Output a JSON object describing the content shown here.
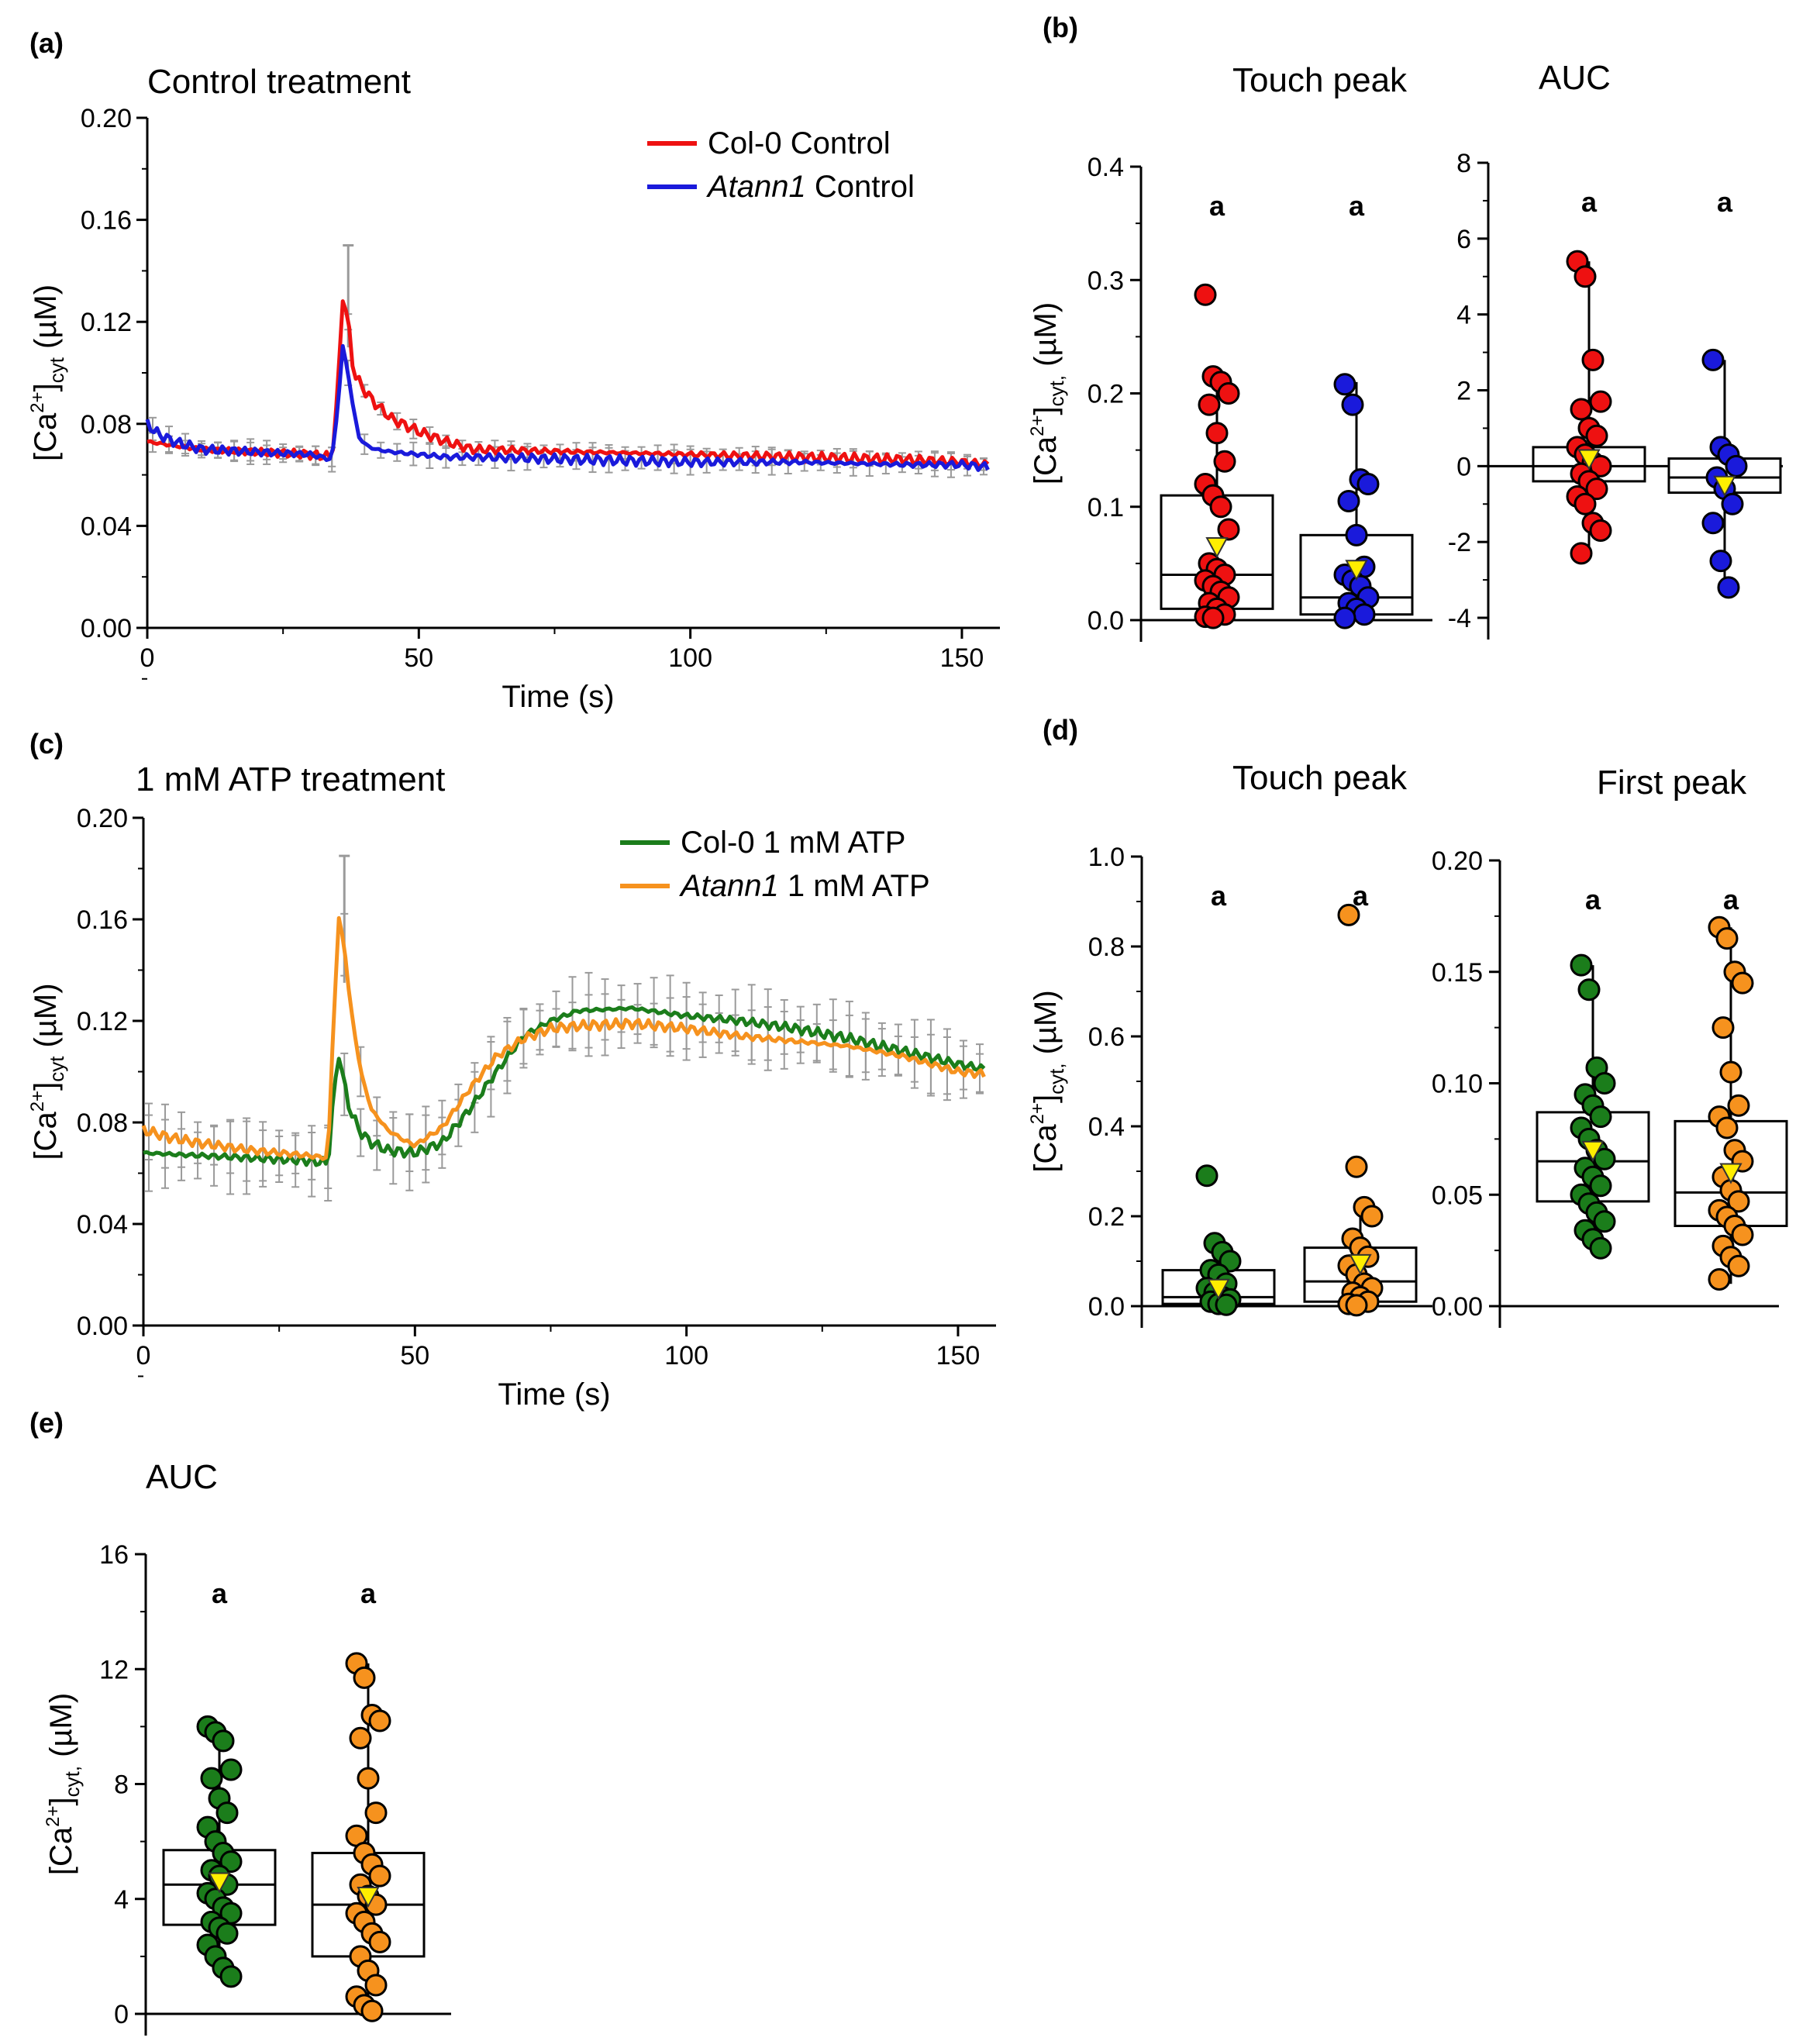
{
  "colors": {
    "red": "#ee1111",
    "blue": "#1a1adb",
    "green": "#1b7d1b",
    "orange": "#f6921e",
    "err": "#9a9a9a",
    "mean": "#ffee00"
  },
  "chart_data": [
    {
      "id": "a",
      "panel_label": "(a)",
      "type": "line",
      "title": "Control treatment",
      "xlabel": "Time (s)",
      "ylabel": "[Ca2+]cyt (µM)",
      "ylabel_parts": [
        "[Ca",
        "2+",
        "]",
        "cyt",
        " (µM)"
      ],
      "xlim": [
        0,
        157
      ],
      "ylim": [
        0,
        0.2
      ],
      "xticks": [
        "0",
        "50",
        "100",
        "150"
      ],
      "yticks": [
        "0.00",
        "0.04",
        "0.08",
        "0.12",
        "0.16",
        "0.20"
      ],
      "legend": {
        "position": "top-right"
      },
      "series": [
        {
          "name": "Col-0 Control",
          "name_parts": [
            "Col-0 Control"
          ],
          "italic_parts": [],
          "color_key": "red",
          "x": [
            0,
            10,
            20,
            30,
            34,
            35,
            36,
            37,
            38,
            40,
            42,
            45,
            50,
            55,
            60,
            80,
            100,
            120,
            140,
            150,
            155
          ],
          "y": [
            0.073,
            0.07,
            0.069,
            0.068,
            0.067,
            0.09,
            0.13,
            0.12,
            0.1,
            0.093,
            0.088,
            0.082,
            0.077,
            0.073,
            0.07,
            0.069,
            0.068,
            0.067,
            0.066,
            0.065,
            0.064
          ],
          "err": 0.003
        },
        {
          "name": "Atann1 Control",
          "name_parts": [
            "Atann1",
            " Control"
          ],
          "italic_parts": [
            0
          ],
          "color_key": "blue",
          "x": [
            0,
            2,
            5,
            10,
            20,
            30,
            34,
            35,
            36,
            37,
            38,
            39,
            40,
            42,
            45,
            50,
            55,
            60,
            80,
            100,
            120,
            140,
            150,
            155
          ],
          "y": [
            0.08,
            0.076,
            0.073,
            0.07,
            0.069,
            0.068,
            0.066,
            0.085,
            0.11,
            0.1,
            0.085,
            0.075,
            0.072,
            0.07,
            0.069,
            0.068,
            0.067,
            0.067,
            0.066,
            0.065,
            0.065,
            0.064,
            0.064,
            0.063
          ],
          "err": 0.004
        }
      ],
      "peak_error": {
        "x": 37,
        "y": 0.13,
        "err": 0.02
      }
    },
    {
      "id": "b1",
      "panel_label": "(b)",
      "type": "box",
      "title": "Touch peak",
      "ylabel": "[Ca2+]cyt (µM)",
      "ylabel_parts": [
        "[Ca",
        "2+",
        "]",
        "cyt,",
        " (µM)"
      ],
      "ylim": [
        0,
        0.4
      ],
      "yticks": [
        "0.0",
        "0.1",
        "0.2",
        "0.3",
        "0.4"
      ],
      "ytick_values": [
        0,
        0.1,
        0.2,
        0.3,
        0.4
      ],
      "zero_line": false,
      "groups": [
        {
          "color_key": "red",
          "sig": "a",
          "q1": 0.01,
          "median": 0.04,
          "q3": 0.11,
          "whisker_low": 0.0,
          "whisker_high": 0.215,
          "mean": 0.065,
          "points": [
            0.287,
            0.215,
            0.21,
            0.2,
            0.19,
            0.165,
            0.14,
            0.12,
            0.11,
            0.1,
            0.08,
            0.05,
            0.045,
            0.04,
            0.035,
            0.03,
            0.025,
            0.02,
            0.015,
            0.01,
            0.005,
            0.003,
            0.002
          ]
        },
        {
          "color_key": "blue",
          "sig": "a",
          "q1": 0.005,
          "median": 0.02,
          "q3": 0.075,
          "whisker_low": 0.0,
          "whisker_high": 0.21,
          "mean": 0.045,
          "points": [
            0.208,
            0.19,
            0.124,
            0.12,
            0.105,
            0.075,
            0.047,
            0.04,
            0.035,
            0.03,
            0.02,
            0.015,
            0.01,
            0.005,
            0.002
          ]
        }
      ]
    },
    {
      "id": "b2",
      "type": "box",
      "title": "AUC",
      "ylim": [
        -4,
        8
      ],
      "yticks": [
        "-4",
        "-2",
        "0",
        "2",
        "4",
        "6",
        "8"
      ],
      "ytick_values": [
        -4,
        -2,
        0,
        2,
        4,
        6,
        8
      ],
      "zero_line": true,
      "groups": [
        {
          "color_key": "red",
          "sig": "a",
          "q1": -0.4,
          "median": 0.0,
          "q3": 0.5,
          "whisker_low": -2.3,
          "whisker_high": 5.4,
          "mean": 0.2,
          "points": [
            5.4,
            5.0,
            2.8,
            1.7,
            1.5,
            1.0,
            0.8,
            0.5,
            0.3,
            0.1,
            0.0,
            -0.2,
            -0.4,
            -0.6,
            -0.8,
            -1.0,
            -1.5,
            -1.7,
            -2.3
          ]
        },
        {
          "color_key": "blue",
          "sig": "a",
          "q1": -0.7,
          "median": -0.3,
          "q3": 0.2,
          "whisker_low": -3.2,
          "whisker_high": 2.8,
          "mean": -0.5,
          "points": [
            2.8,
            0.5,
            0.3,
            0.0,
            -0.3,
            -0.6,
            -1.0,
            -1.5,
            -2.5,
            -3.2
          ]
        }
      ]
    },
    {
      "id": "c",
      "panel_label": "(c)",
      "type": "line",
      "title": "1 mM ATP treatment",
      "xlabel": "Time (s)",
      "ylabel": "[Ca2+]cyt (µM)",
      "ylabel_parts": [
        "[Ca",
        "2+",
        "]",
        "cyt",
        " (µM)"
      ],
      "xlim": [
        0,
        157
      ],
      "ylim": [
        0,
        0.2
      ],
      "xticks": [
        "0",
        "50",
        "100",
        "150"
      ],
      "yticks": [
        "0.00",
        "0.04",
        "0.08",
        "0.12",
        "0.16",
        "0.20"
      ],
      "legend": {
        "position": "top-right"
      },
      "series": [
        {
          "name": "Col-0 1 mM ATP",
          "name_parts": [
            "Col-0 1 mM ATP"
          ],
          "italic_parts": [],
          "color_key": "green",
          "x": [
            0,
            10,
            20,
            30,
            34,
            35,
            36,
            37,
            38,
            40,
            42,
            45,
            50,
            55,
            60,
            65,
            70,
            75,
            80,
            90,
            100,
            110,
            120,
            130,
            140,
            150,
            155
          ],
          "y": [
            0.068,
            0.067,
            0.066,
            0.065,
            0.064,
            0.09,
            0.107,
            0.095,
            0.085,
            0.076,
            0.072,
            0.069,
            0.068,
            0.072,
            0.085,
            0.1,
            0.114,
            0.12,
            0.124,
            0.125,
            0.122,
            0.12,
            0.117,
            0.113,
            0.108,
            0.103,
            0.101
          ],
          "err": 0.012
        },
        {
          "name": "Atann1 1 mM ATP",
          "name_parts": [
            "Atann1",
            " 1 mM ATP"
          ],
          "italic_parts": [
            0
          ],
          "color_key": "orange",
          "x": [
            0,
            5,
            10,
            20,
            30,
            34,
            35,
            36,
            37,
            38,
            40,
            42,
            45,
            48,
            50,
            55,
            60,
            65,
            70,
            75,
            80,
            90,
            100,
            110,
            120,
            130,
            140,
            150,
            155
          ],
          "y": [
            0.077,
            0.074,
            0.072,
            0.069,
            0.067,
            0.066,
            0.12,
            0.16,
            0.15,
            0.128,
            0.1,
            0.085,
            0.077,
            0.073,
            0.071,
            0.078,
            0.093,
            0.106,
            0.113,
            0.117,
            0.118,
            0.119,
            0.117,
            0.114,
            0.112,
            0.11,
            0.106,
            0.1,
            0.099
          ],
          "err": 0.01
        }
      ],
      "peak_error": {
        "x": 37,
        "y": 0.16,
        "err": 0.025
      }
    },
    {
      "id": "d1",
      "panel_label": "(d)",
      "type": "box",
      "title": "Touch peak",
      "ylabel": "[Ca2+]cyt (µM)",
      "ylabel_parts": [
        "[Ca",
        "2+",
        "]",
        "cyt,",
        " (µM)"
      ],
      "ylim": [
        0,
        1.0
      ],
      "yticks": [
        "0.0",
        "0.2",
        "0.4",
        "0.6",
        "0.8",
        "1.0"
      ],
      "ytick_values": [
        0,
        0.2,
        0.4,
        0.6,
        0.8,
        1.0
      ],
      "zero_line": false,
      "groups": [
        {
          "color_key": "green",
          "sig": "a",
          "q1": 0.005,
          "median": 0.02,
          "q3": 0.08,
          "whisker_low": 0.0,
          "whisker_high": 0.14,
          "mean": 0.04,
          "points": [
            0.29,
            0.14,
            0.12,
            0.1,
            0.08,
            0.07,
            0.05,
            0.04,
            0.03,
            0.02,
            0.015,
            0.01,
            0.005,
            0.003
          ]
        },
        {
          "color_key": "orange",
          "sig": "a",
          "q1": 0.01,
          "median": 0.055,
          "q3": 0.13,
          "whisker_low": 0.0,
          "whisker_high": 0.22,
          "mean": 0.095,
          "points": [
            0.87,
            0.31,
            0.22,
            0.2,
            0.15,
            0.13,
            0.11,
            0.09,
            0.07,
            0.05,
            0.04,
            0.03,
            0.02,
            0.01,
            0.005,
            0.002
          ]
        }
      ]
    },
    {
      "id": "d2",
      "type": "box",
      "title": "First peak",
      "ylim": [
        0,
        0.2
      ],
      "yticks": [
        "0.00",
        "0.05",
        "0.10",
        "0.15",
        "0.20"
      ],
      "ytick_values": [
        0,
        0.05,
        0.1,
        0.15,
        0.2
      ],
      "zero_line": false,
      "groups": [
        {
          "color_key": "green",
          "sig": "a",
          "q1": 0.047,
          "median": 0.065,
          "q3": 0.087,
          "whisker_low": 0.025,
          "whisker_high": 0.153,
          "mean": 0.07,
          "points": [
            0.153,
            0.142,
            0.107,
            0.1,
            0.095,
            0.09,
            0.085,
            0.08,
            0.075,
            0.07,
            0.066,
            0.062,
            0.058,
            0.054,
            0.05,
            0.046,
            0.042,
            0.038,
            0.034,
            0.03,
            0.026
          ]
        },
        {
          "color_key": "orange",
          "sig": "a",
          "q1": 0.036,
          "median": 0.051,
          "q3": 0.083,
          "whisker_low": 0.01,
          "whisker_high": 0.17,
          "mean": 0.06,
          "points": [
            0.17,
            0.165,
            0.15,
            0.145,
            0.125,
            0.105,
            0.09,
            0.085,
            0.08,
            0.07,
            0.065,
            0.058,
            0.052,
            0.047,
            0.043,
            0.04,
            0.036,
            0.032,
            0.027,
            0.022,
            0.018,
            0.012
          ]
        }
      ]
    },
    {
      "id": "e",
      "panel_label": "(e)",
      "type": "box",
      "title": "AUC",
      "ylabel": "[Ca2+]cyt (µM)",
      "ylabel_parts": [
        "[Ca",
        "2+",
        "]",
        "cyt,",
        " (µM)"
      ],
      "ylim": [
        0,
        16
      ],
      "yticks": [
        "0",
        "4",
        "8",
        "12",
        "16"
      ],
      "ytick_values": [
        0,
        4,
        8,
        12,
        16
      ],
      "zero_line": false,
      "groups": [
        {
          "color_key": "green",
          "sig": "a",
          "q1": 3.1,
          "median": 4.5,
          "q3": 5.7,
          "whisker_low": 1.3,
          "whisker_high": 10.0,
          "mean": 4.6,
          "points": [
            10.0,
            9.8,
            9.5,
            8.5,
            8.2,
            7.5,
            7.0,
            6.5,
            6.0,
            5.6,
            5.3,
            5.0,
            4.8,
            4.5,
            4.2,
            4.0,
            3.7,
            3.5,
            3.2,
            3.0,
            2.8,
            2.4,
            2.0,
            1.6,
            1.3
          ]
        },
        {
          "color_key": "orange",
          "sig": "a",
          "q1": 2.0,
          "median": 3.8,
          "q3": 5.6,
          "whisker_low": 0.0,
          "whisker_high": 12.2,
          "mean": 4.1,
          "points": [
            12.2,
            11.7,
            10.4,
            10.2,
            9.6,
            8.2,
            7.0,
            6.2,
            5.6,
            5.2,
            4.8,
            4.5,
            4.1,
            3.8,
            3.5,
            3.2,
            2.8,
            2.5,
            2.0,
            1.5,
            1.0,
            0.6,
            0.3,
            0.1
          ]
        }
      ]
    }
  ]
}
